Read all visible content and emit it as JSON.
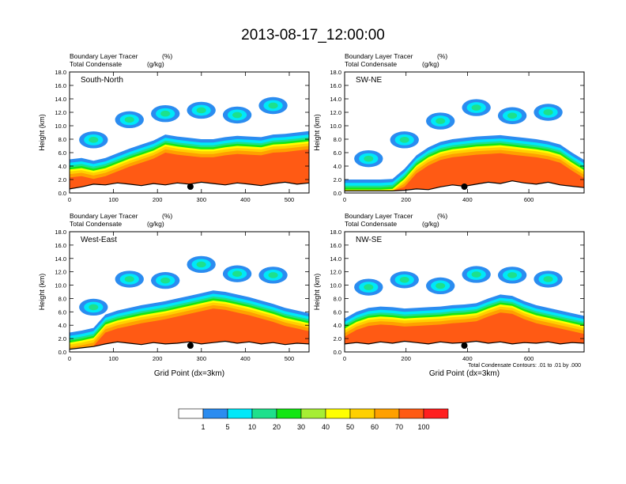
{
  "figure": {
    "title": "2013-08-17_12:00:00",
    "contour_note": "Total Condensate Contours: .01 to .01 by .000"
  },
  "colors": {
    "levels": [
      "#ffffff",
      "#2b8cf0",
      "#00e8f8",
      "#1ee08c",
      "#14e614",
      "#a6ee34",
      "#ffff00",
      "#ffd000",
      "#ffa000",
      "#ff5a14",
      "#ff1f1f"
    ]
  },
  "chart_data": [
    {
      "type": "contour",
      "annotation": "South-North",
      "subtitle_left": "Boundary Layer Tracer",
      "subtitle_left_units": "(%)",
      "subtitle_left2": "Total Condensate",
      "subtitle_left2_units": "(g/kg)",
      "ylabel": "Height (km)",
      "xlabel": "",
      "xlim": [
        0,
        545
      ],
      "ylim": [
        0,
        18
      ],
      "xticks": [
        0,
        100,
        200,
        300,
        400,
        500
      ],
      "yticks": [
        "0.0",
        "2.0",
        "4.0",
        "6.0",
        "8.0",
        "10.0",
        "12.0",
        "14.0",
        "16.0",
        "18.0"
      ],
      "marker_x": 275,
      "terrain_height_km": [
        0.6,
        0.9,
        1.3,
        1.2,
        1.5,
        1.3,
        1.1,
        1.4,
        1.2,
        1.5,
        1.3,
        1.6,
        1.4,
        1.2,
        1.5,
        1.3,
        1.1,
        1.4,
        1.6,
        1.3,
        1.5
      ],
      "bl_top_km": [
        3.6,
        3.8,
        3.4,
        3.8,
        4.5,
        5.2,
        5.8,
        6.4,
        7.3,
        7.0,
        6.8,
        6.6,
        6.6,
        6.9,
        7.1,
        7.0,
        6.9,
        7.3,
        7.4,
        7.6,
        7.8
      ]
    },
    {
      "type": "contour",
      "annotation": "SW-NE",
      "subtitle_left": "Boundary Layer Tracer",
      "subtitle_left_units": "(%)",
      "subtitle_left2": "Total Condensate",
      "subtitle_left2_units": "(g/kg)",
      "ylabel": "Height (km)",
      "xlabel": "",
      "xlim": [
        0,
        780
      ],
      "ylim": [
        0,
        18
      ],
      "xticks": [
        0,
        200,
        400,
        600
      ],
      "yticks": [
        "0.0",
        "2.0",
        "4.0",
        "6.0",
        "8.0",
        "10.0",
        "12.0",
        "14.0",
        "16.0",
        "18.0"
      ],
      "marker_x": 390,
      "terrain_height_km": [
        0.3,
        0.3,
        0.3,
        0.3,
        0.3,
        0.4,
        0.6,
        0.5,
        0.9,
        1.2,
        1.0,
        1.3,
        1.6,
        1.4,
        1.8,
        1.5,
        1.3,
        1.6,
        1.2,
        1.0,
        0.8
      ],
      "bl_top_km": [
        0.6,
        0.6,
        0.6,
        0.6,
        0.7,
        2.2,
        4.2,
        5.4,
        6.2,
        6.6,
        6.8,
        7.0,
        7.1,
        7.2,
        7.0,
        6.8,
        6.6,
        6.3,
        5.8,
        4.6,
        3.5
      ]
    },
    {
      "type": "contour",
      "annotation": "West-East",
      "subtitle_left": "Boundary Layer Tracer",
      "subtitle_left_units": "(%)",
      "subtitle_left2": "Total Condensate",
      "subtitle_left2_units": "(g/kg)",
      "ylabel": "Height (km)",
      "xlabel": "Grid Point (dx=3km)",
      "xlim": [
        0,
        545
      ],
      "ylim": [
        0,
        18
      ],
      "xticks": [
        0,
        100,
        200,
        300,
        400,
        500
      ],
      "yticks": [
        "0.0",
        "2.0",
        "4.0",
        "6.0",
        "8.0",
        "10.0",
        "12.0",
        "14.0",
        "16.0",
        "18.0"
      ],
      "marker_x": 275,
      "terrain_height_km": [
        0.4,
        0.6,
        0.8,
        1.2,
        1.5,
        1.3,
        1.1,
        1.4,
        1.2,
        1.3,
        1.5,
        1.2,
        1.4,
        1.6,
        1.3,
        1.5,
        1.2,
        1.4,
        1.1,
        1.3,
        1.2
      ],
      "bl_top_km": [
        1.5,
        1.8,
        2.2,
        4.2,
        4.8,
        5.2,
        5.6,
        5.9,
        6.2,
        6.6,
        7.0,
        7.4,
        7.8,
        7.6,
        7.2,
        6.8,
        6.3,
        5.8,
        5.2,
        4.8,
        4.4
      ]
    },
    {
      "type": "contour",
      "annotation": "NW-SE",
      "subtitle_left": "Boundary Layer Tracer",
      "subtitle_left_units": "(%)",
      "subtitle_left2": "Total Condensate",
      "subtitle_left2_units": "(g/kg)",
      "ylabel": "Height (km)",
      "xlabel": "Grid Point (dx=3km)",
      "xlim": [
        0,
        780
      ],
      "ylim": [
        0,
        18
      ],
      "xticks": [
        0,
        200,
        400,
        600
      ],
      "yticks": [
        "0.0",
        "2.0",
        "4.0",
        "6.0",
        "8.0",
        "10.0",
        "12.0",
        "14.0",
        "16.0",
        "18.0"
      ],
      "marker_x": 390,
      "terrain_height_km": [
        1.2,
        1.4,
        1.2,
        1.5,
        1.3,
        1.6,
        1.4,
        1.2,
        1.5,
        1.3,
        1.4,
        1.6,
        1.3,
        1.5,
        1.2,
        1.4,
        1.3,
        1.5,
        1.2,
        1.4,
        1.3
      ],
      "bl_top_km": [
        3.6,
        4.6,
        5.2,
        5.4,
        5.3,
        5.1,
        5.2,
        5.3,
        5.4,
        5.6,
        5.7,
        5.9,
        6.6,
        7.2,
        7.0,
        6.2,
        5.6,
        5.2,
        4.8,
        4.4,
        4.0
      ]
    }
  ],
  "colorbar": {
    "labels": [
      "1",
      "5",
      "10",
      "20",
      "30",
      "40",
      "50",
      "60",
      "70",
      "100"
    ]
  }
}
